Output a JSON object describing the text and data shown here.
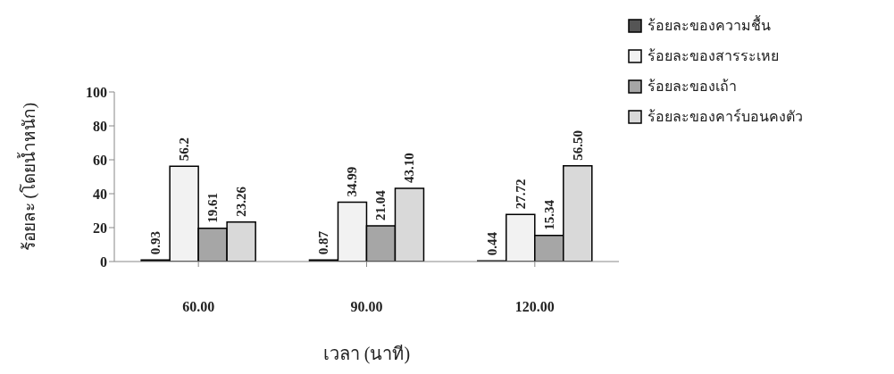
{
  "chart_data": {
    "type": "bar",
    "xlabel": "เวลา (นาที)",
    "ylabel": "ร้อยละ (โดยน้ำหนัก)",
    "categories": [
      "60.00",
      "90.00",
      "120.00"
    ],
    "series": [
      {
        "name": "ร้อยละของความชื้น",
        "color": "#555555",
        "values": [
          0.93,
          0.87,
          0.44
        ],
        "value_labels": [
          "0.93",
          "0.87",
          "0.44"
        ]
      },
      {
        "name": "ร้อยละของสารระเหย",
        "color": "#f2f2f2",
        "values": [
          56.2,
          34.99,
          27.72
        ],
        "value_labels": [
          "56.2",
          "34.99",
          "27.72"
        ]
      },
      {
        "name": "ร้อยละของเถ้า",
        "color": "#a6a6a6",
        "values": [
          19.61,
          21.04,
          15.34
        ],
        "value_labels": [
          "19.61",
          "21.04",
          "15.34"
        ]
      },
      {
        "name": "ร้อยละของคาร์บอนคงตัว",
        "color": "#d9d9d9",
        "values": [
          23.26,
          43.1,
          56.5
        ],
        "value_labels": [
          "23.26",
          "43.10",
          "56.50"
        ]
      }
    ],
    "ylim": [
      0,
      100
    ],
    "yticks": [
      0,
      20,
      40,
      60,
      80,
      100
    ],
    "grid": false,
    "legend": "right"
  }
}
